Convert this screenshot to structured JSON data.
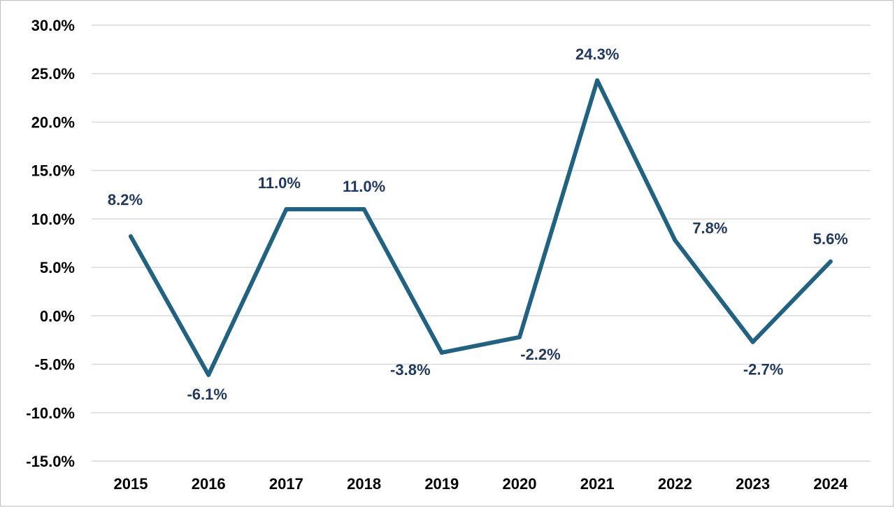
{
  "chart_data": {
    "type": "line",
    "title": "",
    "xlabel": "",
    "ylabel": "",
    "categories": [
      "2015",
      "2016",
      "2017",
      "2018",
      "2019",
      "2020",
      "2021",
      "2022",
      "2023",
      "2024"
    ],
    "series": [
      {
        "values": [
          8.2,
          -6.1,
          11.0,
          11.0,
          -3.8,
          -2.2,
          24.3,
          7.8,
          -2.7,
          5.6
        ],
        "labels": [
          "8.2%",
          "-6.1%",
          "11.0%",
          "11.0%",
          "-3.8%",
          "-2.2%",
          "24.3%",
          "7.8%",
          "-2.7%",
          "5.6%"
        ]
      }
    ],
    "ylim": [
      -15,
      30
    ],
    "y_ticks": [
      30,
      25,
      20,
      15,
      10,
      5,
      0,
      -5,
      -10,
      -15
    ],
    "y_tick_labels": [
      "30.0%",
      "25.0%",
      "20.0%",
      "15.0%",
      "10.0%",
      "5.0%",
      "0.0%",
      "-5.0%",
      "-10.0%",
      "-15.0%"
    ],
    "grid": true,
    "legend": "none",
    "colors": {
      "line": "#1f6284",
      "label": "#1f3864",
      "grid": "#d9d9d9",
      "axis_text": "#000000"
    }
  }
}
